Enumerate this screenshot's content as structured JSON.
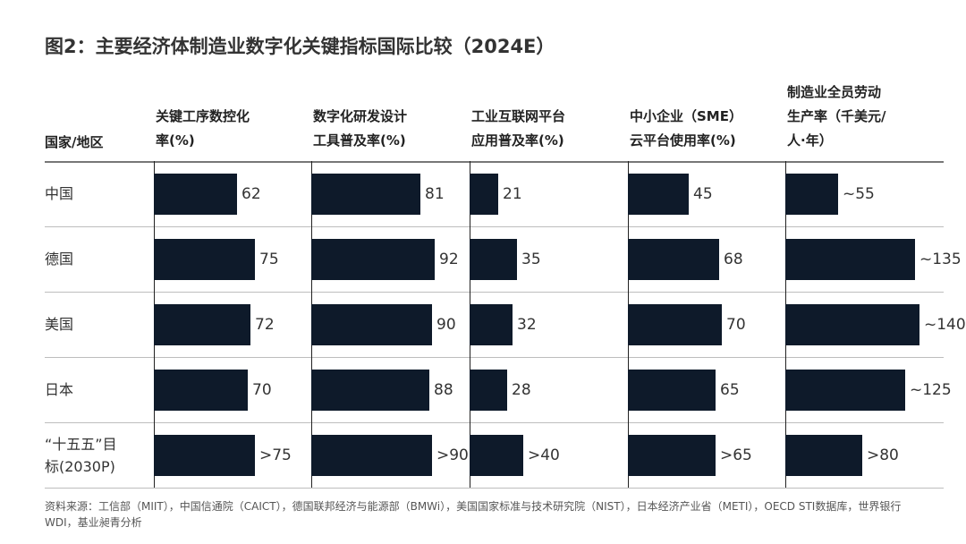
{
  "title": "图2：主要经济体制造业数字化关键指标国际比较（2024E）",
  "row_header": "国家/地区",
  "columns": [
    {
      "lines": [
        "关键工序数控化",
        "率(%)"
      ]
    },
    {
      "lines": [
        "数字化研发设计",
        "工具普及率(%)"
      ]
    },
    {
      "lines": [
        "工业互联网平台",
        "应用普及率(%)"
      ]
    },
    {
      "lines": [
        "中小企业（SME）",
        "云平台使用率(%)"
      ]
    },
    {
      "lines": [
        "制造业全员劳动",
        "生产率（千美元/",
        "人·年）"
      ]
    }
  ],
  "rows": [
    {
      "lines": [
        "中国"
      ]
    },
    {
      "lines": [
        "德国"
      ]
    },
    {
      "lines": [
        "美国"
      ]
    },
    {
      "lines": [
        "日本"
      ]
    },
    {
      "lines": [
        "“十五五”目",
        "标(2030P)"
      ]
    }
  ],
  "source": "资料来源：工信部（MIIT），中国信通院（CAICT），德国联邦经济与能源部（BMWi），美国国家标准与技术研究院（NIST），日本经济产业省（METI），OECD STI数据库，世界银行WDI，基业昶青分析",
  "colors": {
    "bar": "#0e1a2a",
    "grid": "#bdbdbd",
    "axis": "#222222"
  },
  "chart_data": {
    "type": "bar",
    "orientation": "horizontal",
    "categories": [
      "中国",
      "德国",
      "美国",
      "日本",
      "“十五五”目标(2030P)"
    ],
    "series": [
      {
        "name": "关键工序数控化率(%)",
        "values": [
          62,
          75,
          72,
          70,
          75
        ],
        "labels": [
          "62",
          "75",
          "72",
          "70",
          ">75"
        ],
        "max": 100
      },
      {
        "name": "数字化研发设计工具普及率(%)",
        "values": [
          81,
          92,
          90,
          88,
          90
        ],
        "labels": [
          "81",
          "92",
          "90",
          "88",
          ">90"
        ],
        "max": 100
      },
      {
        "name": "工业互联网平台应用普及率(%)",
        "values": [
          21,
          35,
          32,
          28,
          40
        ],
        "labels": [
          "21",
          "35",
          "32",
          "28",
          ">40"
        ],
        "max": 100
      },
      {
        "name": "中小企业（SME）云平台使用率(%)",
        "values": [
          45,
          68,
          70,
          65,
          65
        ],
        "labels": [
          "45",
          "68",
          "70",
          "65",
          ">65"
        ],
        "max": 100
      },
      {
        "name": "制造业全员劳动生产率（千美元/人·年）",
        "values": [
          55,
          135,
          140,
          125,
          80
        ],
        "labels": [
          "~55",
          "~135",
          "~140",
          "~125",
          ">80"
        ],
        "max": 140
      }
    ]
  }
}
